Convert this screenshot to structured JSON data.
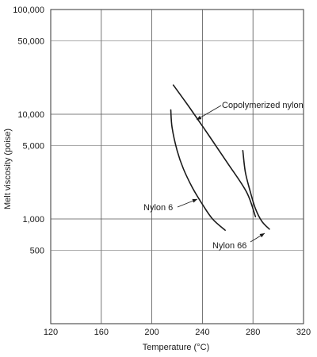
{
  "chart_data": {
    "type": "line",
    "title": "",
    "xlabel": "Temperature (°C)",
    "ylabel": "Melt viscosity (poise)",
    "xlim": [
      120,
      320
    ],
    "ylim": [
      100,
      100000
    ],
    "yscale": "log",
    "grid": true,
    "xticks": [
      120,
      160,
      200,
      240,
      280,
      320
    ],
    "xtick_labels": [
      "120",
      "160",
      "200",
      "240",
      "280",
      "320"
    ],
    "yticks": [
      100000,
      50000,
      10000,
      5000,
      1000,
      500
    ],
    "ytick_labels": [
      "100,000",
      "50,000",
      "10,000",
      "5,000",
      "1,000",
      "500"
    ],
    "series": [
      {
        "name": "Copolymerized nylon",
        "x": [
          217,
          230,
          245,
          260,
          275,
          282
        ],
        "y": [
          19000,
          11500,
          6300,
          3400,
          1800,
          1050
        ]
      },
      {
        "name": "Nylon 6",
        "x": [
          215,
          216,
          220,
          225,
          232,
          240,
          248,
          258
        ],
        "y": [
          11000,
          7500,
          4500,
          3000,
          2000,
          1380,
          1000,
          780
        ]
      },
      {
        "name": "Nylon 66",
        "x": [
          272,
          274,
          278,
          282,
          287,
          293
        ],
        "y": [
          4500,
          2800,
          1800,
          1250,
          950,
          800
        ]
      }
    ],
    "annotations": [
      {
        "text": "Copolymerized nylon",
        "series": 0
      },
      {
        "text": "Nylon 6",
        "series": 1
      },
      {
        "text": "Nylon 66",
        "series": 2
      }
    ]
  }
}
